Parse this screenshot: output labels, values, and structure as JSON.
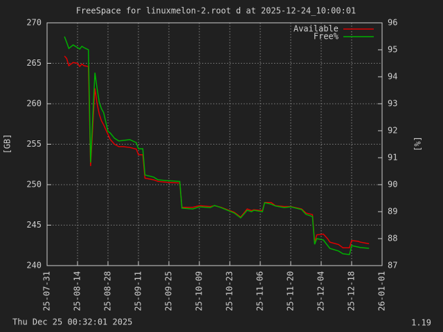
{
  "chart_data": {
    "type": "line",
    "title": "FreeSpace for linuxmelon-2.root d at 2025-12-24_10:00:01",
    "y_label": "[GB]",
    "y2_label": "[%]",
    "annotations": [
      "Thu Dec 25 00:32:01 2025",
      "1.19"
    ],
    "x": [
      "25-08-08",
      "25-08-09",
      "25-08-10",
      "25-08-12",
      "25-08-14",
      "25-08-15",
      "25-08-16",
      "25-08-17",
      "25-08-19",
      "25-08-20",
      "25-08-22",
      "25-08-23",
      "25-08-24",
      "25-08-25",
      "25-08-26",
      "25-08-28",
      "25-08-29",
      "25-08-31",
      "25-09-02",
      "25-09-04",
      "25-09-07",
      "25-09-10",
      "25-09-11",
      "25-09-13",
      "25-09-14",
      "25-09-18",
      "25-09-20",
      "25-09-24",
      "25-09-30",
      "25-10-01",
      "25-10-06",
      "25-10-09",
      "25-10-14",
      "25-10-16",
      "25-10-19",
      "25-10-22",
      "25-10-25",
      "25-10-28",
      "25-10-31",
      "25-11-02",
      "25-11-03",
      "25-11-07",
      "25-11-08",
      "25-11-11",
      "25-11-13",
      "25-11-17",
      "25-11-20",
      "25-11-25",
      "25-11-27",
      "25-11-30",
      "25-12-01",
      "25-12-02",
      "25-12-05",
      "25-12-07",
      "25-12-08",
      "25-12-12",
      "25-12-14",
      "25-12-17",
      "25-12-18",
      "25-12-21",
      "25-12-22",
      "25-12-26"
    ],
    "series": [
      {
        "name": "Available",
        "color": "#e00000",
        "values": [
          265.9,
          265.6,
          264.7,
          265.1,
          265.0,
          264.6,
          264.9,
          264.7,
          264.6,
          252.3,
          261.9,
          260.0,
          258.7,
          257.9,
          257.4,
          256.2,
          255.6,
          255.0,
          254.7,
          254.7,
          254.6,
          254.4,
          253.7,
          253.7,
          250.8,
          250.6,
          250.4,
          250.3,
          250.2,
          247.2,
          247.2,
          247.4,
          247.3,
          247.4,
          247.2,
          246.9,
          246.6,
          246.0,
          247.0,
          246.8,
          246.9,
          246.8,
          247.8,
          247.8,
          247.4,
          247.3,
          247.3,
          247.0,
          246.5,
          246.3,
          242.9,
          243.8,
          243.9,
          243.3,
          242.9,
          242.6,
          242.2,
          242.2,
          243.1,
          243.0,
          242.9,
          242.7
        ]
      },
      {
        "name": "Free%",
        "color": "#00b000",
        "axis": "y2",
        "values": [
          95.49,
          95.28,
          95.05,
          95.18,
          95.08,
          95.03,
          95.13,
          95.08,
          95.0,
          90.82,
          94.15,
          93.56,
          93.05,
          92.82,
          92.67,
          91.97,
          91.92,
          91.72,
          91.62,
          91.64,
          91.67,
          91.56,
          91.33,
          91.33,
          90.36,
          90.28,
          90.18,
          90.15,
          90.12,
          89.13,
          89.1,
          89.18,
          89.15,
          89.23,
          89.15,
          89.05,
          88.95,
          88.77,
          89.05,
          89.0,
          89.05,
          89.0,
          89.33,
          89.28,
          89.21,
          89.15,
          89.18,
          89.08,
          88.9,
          88.82,
          87.79,
          88.0,
          87.95,
          87.74,
          87.64,
          87.54,
          87.44,
          87.41,
          87.74,
          87.69,
          87.67,
          87.64
        ]
      }
    ],
    "xlim": [
      "25-07-31",
      "26-01-01"
    ],
    "xticks": [
      "25-07-31",
      "25-08-14",
      "25-08-28",
      "25-09-11",
      "25-09-25",
      "25-10-09",
      "25-10-23",
      "25-11-06",
      "25-11-20",
      "25-12-04",
      "25-12-18",
      "26-01-01"
    ],
    "ylim": [
      240,
      270
    ],
    "yticks": [
      240,
      245,
      250,
      255,
      260,
      265,
      270
    ],
    "y2lim": [
      87,
      96
    ],
    "y2ticks": [
      87,
      88,
      89,
      90,
      91,
      92,
      93,
      94,
      95,
      96
    ],
    "grid": true,
    "legend": "top-right"
  }
}
